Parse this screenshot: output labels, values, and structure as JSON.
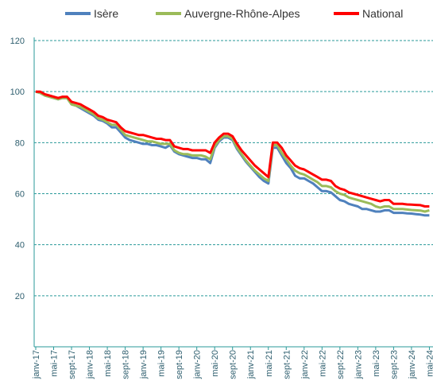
{
  "chart_data": {
    "type": "line",
    "categories": [
      "janv-17",
      null,
      null,
      null,
      "mai-17",
      null,
      null,
      null,
      "sept-17",
      null,
      null,
      null,
      "janv-18",
      null,
      null,
      null,
      "mai-18",
      null,
      null,
      null,
      "sept-18",
      null,
      null,
      null,
      "janv-19",
      null,
      null,
      null,
      "mai-19",
      null,
      null,
      null,
      "sept-19",
      null,
      null,
      null,
      "janv-20",
      null,
      null,
      null,
      "mai-20",
      null,
      null,
      null,
      "sept-20",
      null,
      null,
      null,
      "janv-21",
      null,
      null,
      null,
      "mai-21",
      null,
      null,
      null,
      "sept-21",
      null,
      null,
      null,
      "janv-22",
      null,
      null,
      null,
      "mai-22",
      null,
      null,
      null,
      "sept-22",
      null,
      null,
      null,
      "janv-23",
      null,
      null,
      null,
      "mai-23",
      null,
      null,
      null,
      "sept-23",
      null,
      null,
      null,
      "janv-24",
      null,
      null,
      null,
      "mai-24"
    ],
    "series": [
      {
        "name": "Isère",
        "color": "#4f81bd",
        "values": [
          100,
          99.5,
          98.5,
          98,
          97.5,
          97,
          97.5,
          97.5,
          95,
          94.5,
          93.5,
          92.5,
          91.5,
          90.5,
          89,
          88.5,
          87.5,
          86,
          86,
          84,
          82,
          81,
          80.5,
          80,
          79.5,
          79.5,
          79,
          79,
          78.5,
          78,
          79,
          76.5,
          75.5,
          75,
          74.5,
          74,
          74,
          73.5,
          73.5,
          72,
          78,
          80.5,
          82,
          82,
          81,
          77.5,
          75,
          72.5,
          70.5,
          68.5,
          66.5,
          65,
          64,
          78,
          78,
          75,
          72,
          70,
          67,
          66,
          66,
          65,
          64,
          62.5,
          61,
          61,
          60.5,
          59,
          57.5,
          57,
          56,
          55.5,
          55,
          54,
          54,
          53.5,
          53,
          53,
          53.5,
          53.5,
          52.5,
          52.5,
          52.5,
          52.3,
          52.2,
          52,
          51.8,
          51.5,
          51.5
        ]
      },
      {
        "name": "Auvergne-Rhône-Alpes",
        "color": "#9bbb59",
        "values": [
          100,
          99.5,
          98.5,
          98,
          97.5,
          97,
          97.5,
          97.5,
          95,
          94.5,
          94,
          93,
          92,
          91,
          89.5,
          89,
          88,
          87,
          87,
          85,
          83,
          82.5,
          82,
          81.5,
          81,
          80.5,
          80.5,
          80,
          79.5,
          79.5,
          79.5,
          77,
          76,
          75.5,
          75.5,
          75,
          75,
          75,
          74.5,
          73.5,
          78.5,
          81,
          82.5,
          82.5,
          81.5,
          78,
          75.5,
          73,
          71,
          69,
          67.5,
          66,
          65,
          79,
          79,
          76,
          73.5,
          71,
          69,
          68,
          67.5,
          66.5,
          65.5,
          64.5,
          63,
          63,
          62.5,
          61,
          60,
          59.5,
          58.5,
          58,
          57.5,
          57,
          56.5,
          56,
          55,
          54.5,
          55,
          55,
          54,
          54,
          54,
          53.8,
          53.6,
          53.5,
          53.4,
          53,
          53.5
        ]
      },
      {
        "name": "National",
        "color": "#ff0000",
        "values": [
          100,
          100,
          99,
          98.5,
          98,
          97.5,
          98,
          98,
          96,
          95.5,
          95,
          94,
          93,
          92,
          90.5,
          90,
          89,
          88.5,
          88,
          86,
          84.5,
          84,
          83.5,
          83,
          83,
          82.5,
          82,
          81.5,
          81.5,
          81,
          81,
          78.5,
          78,
          77.5,
          77.5,
          77,
          77,
          77,
          77,
          76,
          80,
          82,
          83.5,
          83.5,
          82.5,
          79.5,
          77,
          75,
          73,
          71,
          69.5,
          68,
          66.5,
          80,
          80,
          78,
          75,
          73,
          71,
          70,
          69.5,
          68.5,
          67.5,
          66.5,
          65.5,
          65.5,
          65,
          63,
          62,
          61.5,
          60.5,
          60,
          59.5,
          59,
          58.5,
          58,
          57.5,
          57,
          57.5,
          57.5,
          56,
          56,
          56,
          55.8,
          55.7,
          55.6,
          55.5,
          55,
          55
        ]
      }
    ],
    "ylim": [
      0,
      120
    ],
    "yticks": [
      20,
      40,
      60,
      80,
      100,
      120
    ],
    "grid": true,
    "legend": "top"
  }
}
